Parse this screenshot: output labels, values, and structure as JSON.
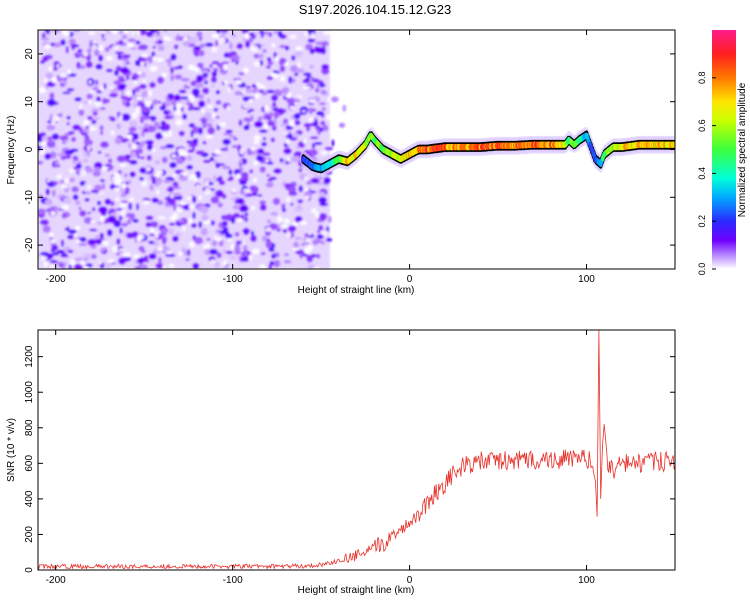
{
  "figure_title": "S197.2026.104.15.12.G23",
  "colors": {
    "snr_line": "#e8322c",
    "axis": "#000000",
    "ridge_outline": "#000000"
  },
  "chart_data": [
    {
      "type": "heatmap",
      "title": "S197.2026.104.15.12.G23",
      "xlabel": "Height of straight line (km)",
      "ylabel": "Frequency (Hz)",
      "xlim": [
        -210,
        150
      ],
      "ylim": [
        -25,
        25
      ],
      "xticks": [
        -200,
        -100,
        0,
        100
      ],
      "yticks": [
        -20,
        -10,
        0,
        10,
        20
      ],
      "colorbar": {
        "label": "Normalized spectral amplitude",
        "range": [
          0,
          1
        ],
        "ticks": [
          "0.0",
          "0.2",
          "0.4",
          "0.6",
          "0.8"
        ],
        "tick_values": [
          0.0,
          0.2,
          0.4,
          0.6,
          0.8
        ],
        "colormap": "white-purple-blue-cyan-green-yellow-red-magenta"
      },
      "noise_region": {
        "x_from": -210,
        "x_to": -45,
        "amplitude_range": [
          0.0,
          0.15
        ]
      },
      "ridge": {
        "x": [
          -60,
          -55,
          -50,
          -45,
          -40,
          -35,
          -30,
          -25,
          -22,
          -20,
          -15,
          -10,
          -5,
          0,
          5,
          10,
          20,
          30,
          40,
          50,
          60,
          70,
          80,
          85,
          88,
          90,
          93,
          96,
          100,
          103,
          105,
          108,
          110,
          115,
          120,
          130,
          140,
          150
        ],
        "frequency": [
          -2,
          -3.5,
          -4,
          -3,
          -2,
          -2.5,
          -1,
          1,
          3,
          2,
          0,
          -1,
          -2,
          -1,
          0,
          0,
          0.5,
          0.5,
          0.5,
          0.8,
          0.8,
          1,
          1,
          1,
          1,
          2,
          1,
          2,
          3,
          0,
          -2,
          -3,
          -1,
          0.5,
          0.5,
          1,
          1,
          1
        ],
        "amplitude": [
          0.2,
          0.25,
          0.3,
          0.35,
          0.5,
          0.7,
          0.7,
          0.6,
          0.55,
          0.5,
          0.55,
          0.6,
          0.65,
          0.7,
          0.8,
          0.85,
          0.8,
          0.75,
          0.8,
          0.85,
          0.8,
          0.8,
          0.8,
          0.75,
          0.6,
          0.5,
          0.55,
          0.45,
          0.3,
          0.25,
          0.2,
          0.3,
          0.5,
          0.6,
          0.7,
          0.7,
          0.7,
          0.7
        ]
      }
    },
    {
      "type": "line",
      "xlabel": "Height of straight line (km)",
      "ylabel": "SNR (10 * v/v)",
      "xlim": [
        -210,
        150
      ],
      "ylim": [
        0,
        1350
      ],
      "xticks": [
        -200,
        -100,
        0,
        100
      ],
      "yticks": [
        0,
        200,
        400,
        600,
        800,
        1000,
        1200
      ],
      "series": [
        {
          "name": "SNR",
          "x": [
            -210,
            -190,
            -150,
            -100,
            -60,
            -50,
            -40,
            -30,
            -20,
            -15,
            -10,
            -5,
            0,
            5,
            10,
            15,
            20,
            25,
            30,
            35,
            40,
            50,
            60,
            70,
            80,
            90,
            100,
            103,
            105,
            106,
            107,
            108,
            109,
            110,
            112,
            115,
            120,
            130,
            140,
            150
          ],
          "y": [
            20,
            20,
            20,
            20,
            22,
            30,
            50,
            80,
            120,
            150,
            190,
            230,
            270,
            320,
            380,
            440,
            490,
            540,
            580,
            600,
            610,
            615,
            615,
            620,
            620,
            625,
            625,
            600,
            500,
            300,
            1350,
            400,
            700,
            820,
            600,
            560,
            600,
            600,
            610,
            610
          ],
          "noise_amplitude": 20
        }
      ]
    }
  ]
}
